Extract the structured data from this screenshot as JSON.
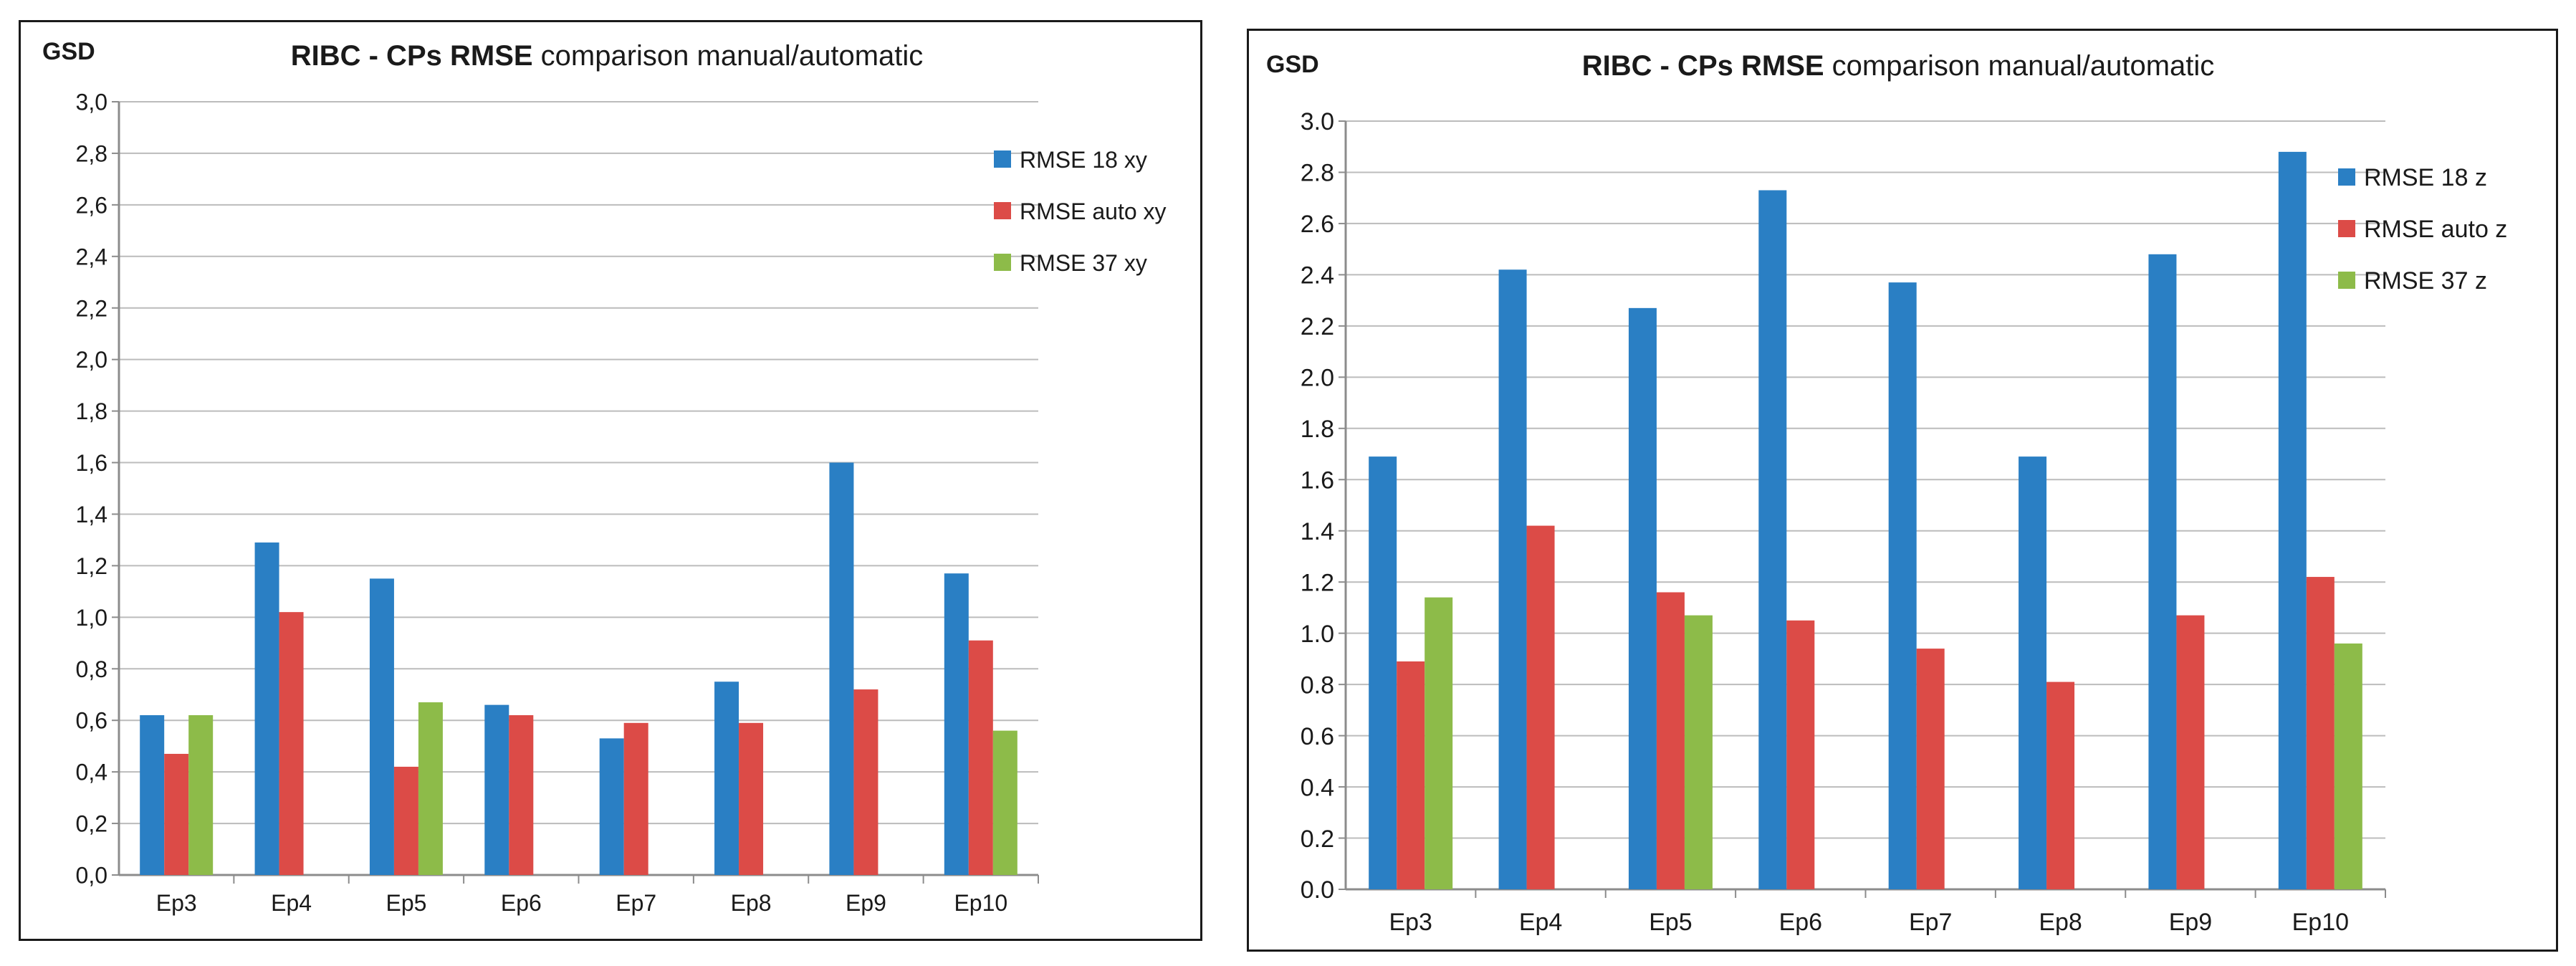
{
  "colors": {
    "series_blue": "#2a7fc4",
    "series_red": "#dc4b47",
    "series_green": "#8dbb49",
    "gridline": "#bcbcbc",
    "axis": "#8c8c8c",
    "text": "#1a1a1a"
  },
  "chart_data": [
    {
      "type": "bar",
      "title_bold": "RIBC - CPs RMSE",
      "title_rest": " comparison manual/automatic",
      "ylabel": "GSD",
      "xlabel": "",
      "ylim": [
        0,
        3.0
      ],
      "ytick_step": 0.2,
      "yticks": [
        "0,0",
        "0,2",
        "0,4",
        "0,6",
        "0,8",
        "1,0",
        "1,2",
        "1,4",
        "1,6",
        "1,8",
        "2,0",
        "2,2",
        "2,4",
        "2,6",
        "2,8",
        "3,0"
      ],
      "grid": true,
      "legend_position": "right",
      "categories": [
        "Ep3",
        "Ep4",
        "Ep5",
        "Ep6",
        "Ep7",
        "Ep8",
        "Ep9",
        "Ep10"
      ],
      "series": [
        {
          "name": "RMSE 18 xy",
          "color": "#2a7fc4",
          "values": [
            0.62,
            1.29,
            1.15,
            0.66,
            0.53,
            0.75,
            1.6,
            1.17
          ]
        },
        {
          "name": "RMSE auto xy",
          "color": "#dc4b47",
          "values": [
            0.47,
            1.02,
            0.42,
            0.62,
            0.59,
            0.59,
            0.72,
            0.91
          ]
        },
        {
          "name": "RMSE 37 xy",
          "color": "#8dbb49",
          "values": [
            0.62,
            null,
            0.67,
            null,
            null,
            null,
            null,
            0.56
          ]
        }
      ]
    },
    {
      "type": "bar",
      "title_bold": "RIBC - CPs RMSE",
      "title_rest": " comparison manual/automatic",
      "ylabel": "GSD",
      "xlabel": "",
      "ylim": [
        0,
        3.0
      ],
      "ytick_step": 0.2,
      "yticks": [
        "0.0",
        "0.2",
        "0.4",
        "0.6",
        "0.8",
        "1.0",
        "1.2",
        "1.4",
        "1.6",
        "1.8",
        "2.0",
        "2.2",
        "2.4",
        "2.6",
        "2.8",
        "3.0"
      ],
      "grid": true,
      "legend_position": "right",
      "categories": [
        "Ep3",
        "Ep4",
        "Ep5",
        "Ep6",
        "Ep7",
        "Ep8",
        "Ep9",
        "Ep10"
      ],
      "series": [
        {
          "name": "RMSE 18 z",
          "color": "#2a7fc4",
          "values": [
            1.69,
            2.42,
            2.27,
            2.73,
            2.37,
            1.69,
            2.48,
            2.88
          ]
        },
        {
          "name": "RMSE auto z",
          "color": "#dc4b47",
          "values": [
            0.89,
            1.42,
            1.16,
            1.05,
            0.94,
            0.81,
            1.07,
            1.22
          ]
        },
        {
          "name": "RMSE 37 z",
          "color": "#8dbb49",
          "values": [
            1.14,
            null,
            1.07,
            null,
            null,
            null,
            null,
            0.96
          ]
        }
      ]
    }
  ]
}
